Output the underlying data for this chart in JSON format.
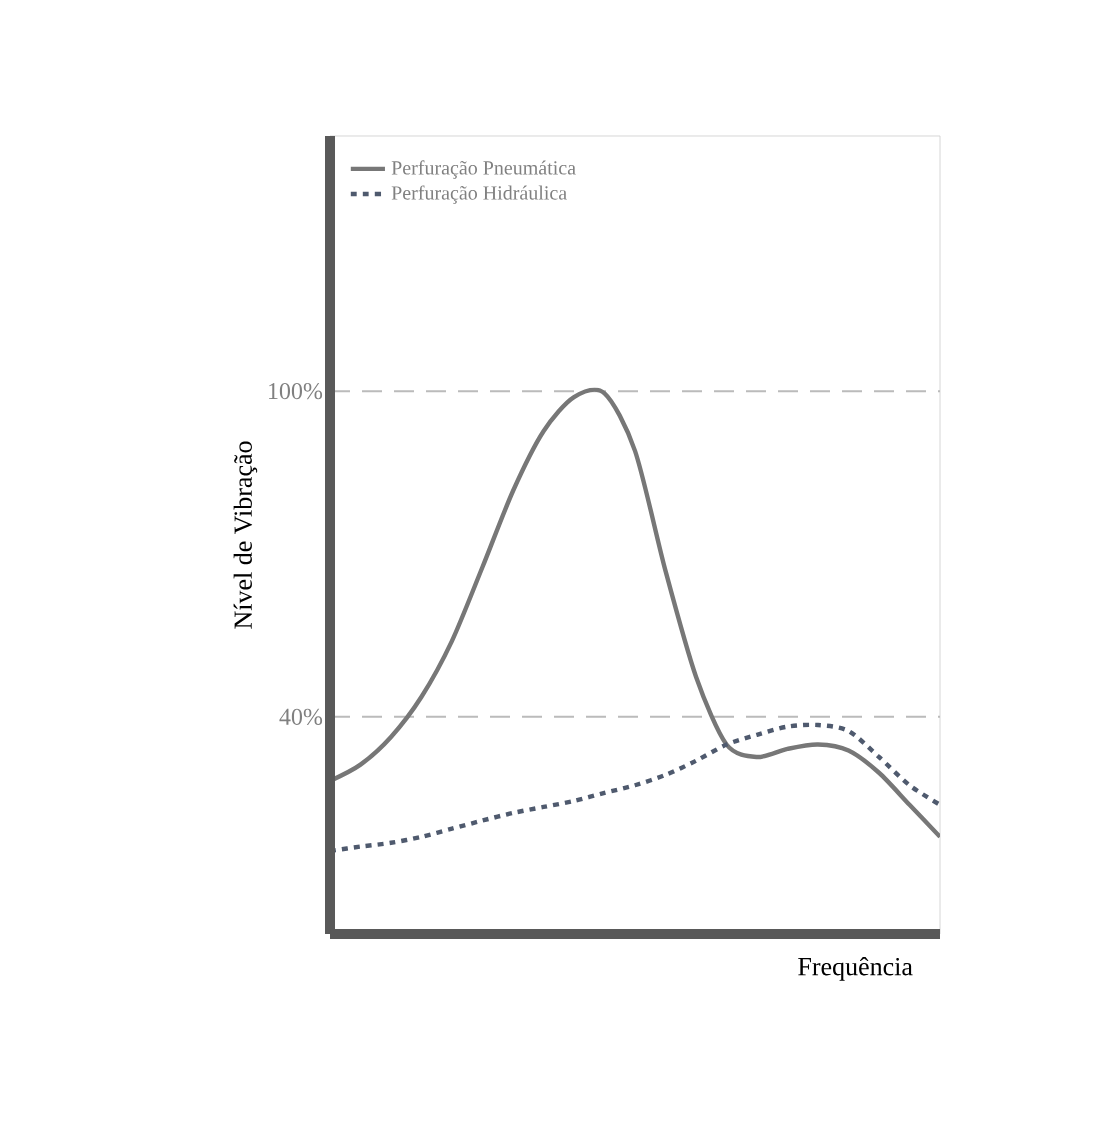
{
  "chart_data": {
    "type": "line",
    "xlabel": "Frequência",
    "ylabel": "Nível de Vibração",
    "categories": [
      null,
      null,
      null,
      null,
      null,
      null,
      null,
      null,
      null,
      null,
      null,
      null,
      null,
      null,
      null,
      null,
      null,
      null,
      null,
      null,
      null
    ],
    "series": [
      {
        "name": "Perfuração Pneumática",
        "color": "#777777",
        "line_style": "solid",
        "values": [
          28.2,
          31.2,
          36.3,
          43.7,
          54.0,
          67.6,
          81.6,
          92.6,
          98.9,
          99.6,
          89.0,
          66.9,
          47.4,
          34.9,
          32.6,
          34.1,
          34.9,
          33.8,
          29.7,
          23.8,
          17.9
        ]
      },
      {
        "name": "Perfuração Hidráulica",
        "color": "#4f5a6e",
        "line_style": "dashed",
        "values": [
          15.3,
          16.1,
          16.8,
          17.9,
          19.4,
          20.9,
          22.3,
          23.4,
          24.5,
          26.0,
          27.4,
          29.3,
          31.9,
          34.9,
          36.7,
          38.2,
          38.5,
          37.4,
          32.6,
          27.4,
          23.8
        ]
      }
    ],
    "ylim": [
      0,
      147
    ],
    "yticks": [
      {
        "value": 40,
        "label": "40%"
      },
      {
        "value": 100,
        "label": "100%"
      }
    ],
    "ref_lines": [
      {
        "axis": "y",
        "value": 100,
        "color": "#bbbbbb",
        "line_style": "dashed"
      },
      {
        "axis": "y",
        "value": 40,
        "color": "#bbbbbb",
        "line_style": "dashed"
      }
    ],
    "legend": "top left",
    "grid": false,
    "marker": "none"
  }
}
